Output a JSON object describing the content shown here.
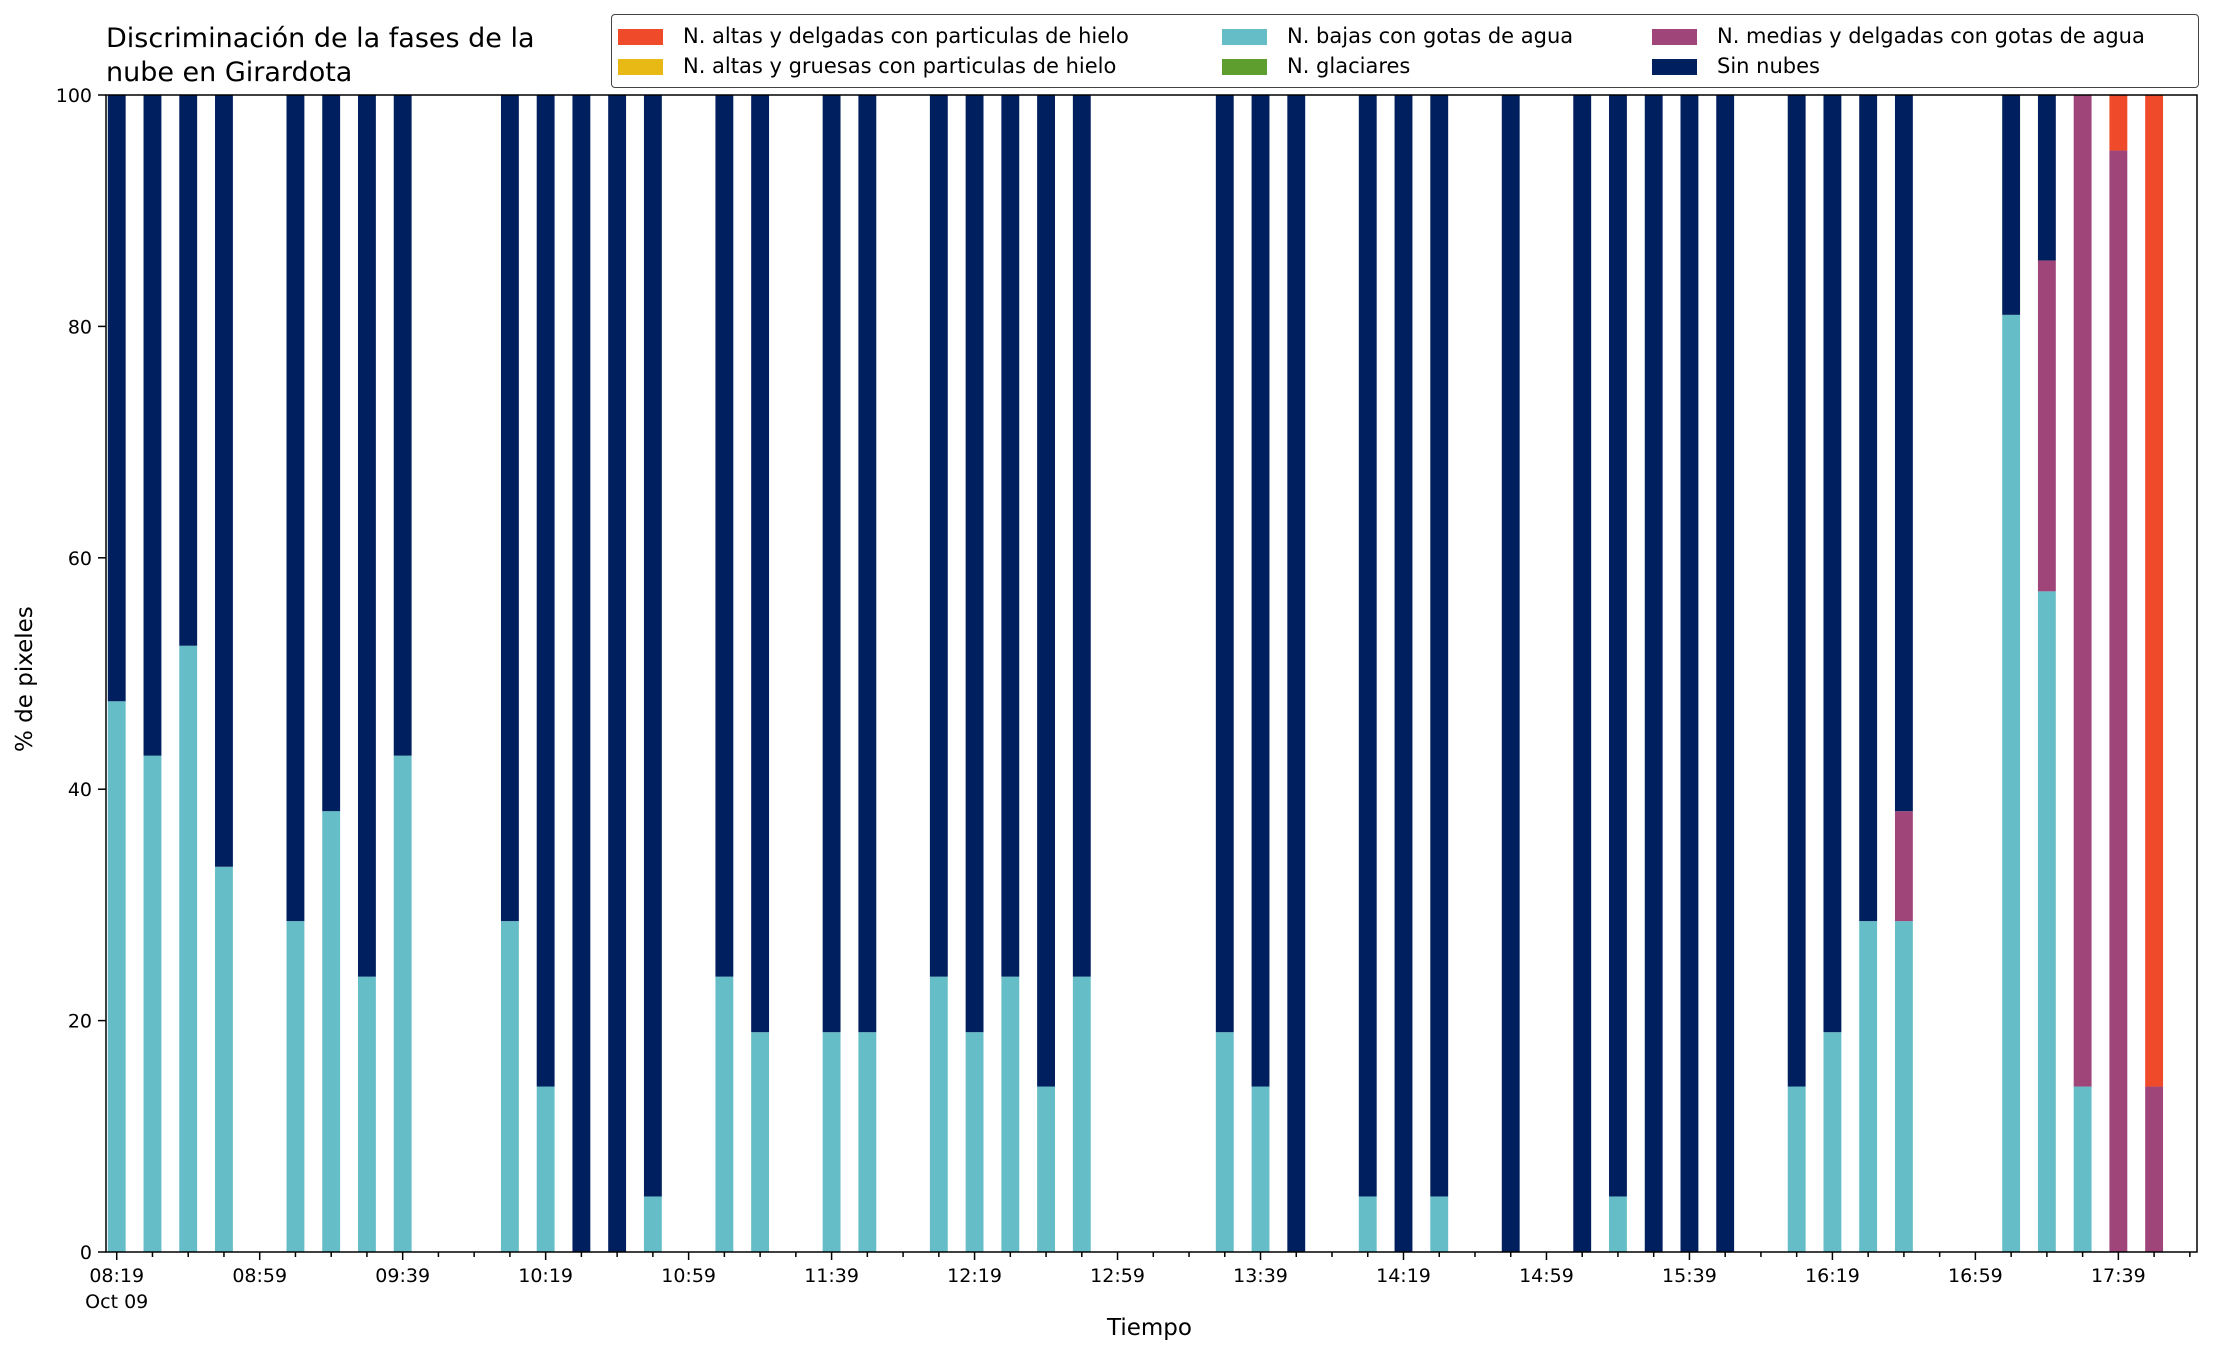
{
  "chart_data": {
    "type": "bar",
    "stacked": true,
    "title_lines": [
      "Discriminación de la fases de la",
      "nube en Girardota"
    ],
    "xlabel": "Tiempo",
    "ylabel": "% de pixeles",
    "ylim": [
      0,
      100
    ],
    "yticks": [
      0,
      20,
      40,
      60,
      80,
      100
    ],
    "xticks": [
      {
        "pos": 0,
        "label": "08:19",
        "sublabel": "Oct 09"
      },
      {
        "pos": 4,
        "label": "08:59"
      },
      {
        "pos": 8,
        "label": "09:39"
      },
      {
        "pos": 12,
        "label": "10:19"
      },
      {
        "pos": 16,
        "label": "10:59"
      },
      {
        "pos": 20,
        "label": "11:39"
      },
      {
        "pos": 24,
        "label": "12:19"
      },
      {
        "pos": 28,
        "label": "12:59"
      },
      {
        "pos": 32,
        "label": "13:39"
      },
      {
        "pos": 36,
        "label": "14:19"
      },
      {
        "pos": 40,
        "label": "14:59"
      },
      {
        "pos": 44,
        "label": "15:39"
      },
      {
        "pos": 48,
        "label": "16:19"
      },
      {
        "pos": 52,
        "label": "16:59"
      },
      {
        "pos": 56,
        "label": "17:39"
      }
    ],
    "xrange": [
      -0.3,
      58.2
    ],
    "legend_location": "top-right",
    "series": [
      {
        "key": "bajas",
        "name": "N. bajas con gotas de agua",
        "color": "#65bdc8"
      },
      {
        "key": "medias",
        "name": "N. medias y delgadas con gotas de agua",
        "color": "#a0457a"
      },
      {
        "key": "altasd",
        "name": "N. altas y delgadas con particulas de hielo",
        "color": "#ef4b2b"
      },
      {
        "key": "altasg",
        "name": "N. altas y gruesas con particulas de hielo",
        "color": "#e8b914"
      },
      {
        "key": "glac",
        "name": "N. glaciares",
        "color": "#5e9e2e"
      },
      {
        "key": "sin",
        "name": "Sin nubes",
        "color": "#001f5e"
      }
    ],
    "legend_order": [
      "altasd",
      "altasg",
      "bajas",
      "glac",
      "medias",
      "sin"
    ],
    "bars": [
      {
        "x": 0,
        "bajas": 47.6,
        "sin": 52.4
      },
      {
        "x": 1,
        "bajas": 42.9,
        "sin": 57.1
      },
      {
        "x": 2,
        "bajas": 52.4,
        "sin": 47.6
      },
      {
        "x": 3,
        "bajas": 33.3,
        "sin": 66.7
      },
      {
        "x": 5,
        "bajas": 28.6,
        "sin": 71.4
      },
      {
        "x": 6,
        "bajas": 38.1,
        "sin": 61.9
      },
      {
        "x": 7,
        "bajas": 23.8,
        "sin": 76.2
      },
      {
        "x": 8,
        "bajas": 42.9,
        "sin": 57.1
      },
      {
        "x": 11,
        "bajas": 28.6,
        "sin": 71.4
      },
      {
        "x": 12,
        "bajas": 14.3,
        "sin": 85.7
      },
      {
        "x": 13,
        "sin": 100
      },
      {
        "x": 14,
        "sin": 100
      },
      {
        "x": 15,
        "bajas": 4.8,
        "sin": 95.2
      },
      {
        "x": 17,
        "bajas": 23.8,
        "sin": 76.2
      },
      {
        "x": 18,
        "bajas": 19.0,
        "sin": 81.0
      },
      {
        "x": 20,
        "bajas": 19.0,
        "sin": 81.0
      },
      {
        "x": 21,
        "bajas": 19.0,
        "sin": 81.0
      },
      {
        "x": 23,
        "bajas": 23.8,
        "sin": 76.2
      },
      {
        "x": 24,
        "bajas": 19.0,
        "sin": 81.0
      },
      {
        "x": 25,
        "bajas": 23.8,
        "sin": 76.2
      },
      {
        "x": 26,
        "bajas": 14.3,
        "sin": 85.7
      },
      {
        "x": 27,
        "bajas": 23.8,
        "sin": 76.2
      },
      {
        "x": 31,
        "bajas": 19.0,
        "sin": 81.0
      },
      {
        "x": 32,
        "bajas": 14.3,
        "sin": 85.7
      },
      {
        "x": 33,
        "sin": 100
      },
      {
        "x": 35,
        "bajas": 4.8,
        "sin": 95.2
      },
      {
        "x": 36,
        "sin": 100
      },
      {
        "x": 37,
        "bajas": 4.8,
        "sin": 95.2
      },
      {
        "x": 39,
        "sin": 100
      },
      {
        "x": 41,
        "sin": 100
      },
      {
        "x": 42,
        "bajas": 4.8,
        "sin": 95.2
      },
      {
        "x": 43,
        "sin": 100
      },
      {
        "x": 44,
        "sin": 100
      },
      {
        "x": 45,
        "sin": 100
      },
      {
        "x": 47,
        "bajas": 14.3,
        "sin": 85.7
      },
      {
        "x": 48,
        "bajas": 19.0,
        "sin": 81.0
      },
      {
        "x": 49,
        "bajas": 28.6,
        "sin": 71.4
      },
      {
        "x": 50,
        "bajas": 28.6,
        "medias": 9.5,
        "sin": 61.9
      },
      {
        "x": 53,
        "bajas": 81.0,
        "sin": 19.0
      },
      {
        "x": 54,
        "bajas": 57.1,
        "medias": 28.6,
        "sin": 14.3
      },
      {
        "x": 55,
        "bajas": 14.3,
        "medias": 85.7
      },
      {
        "x": 56,
        "altasd": 4.8,
        "medias": 95.2
      },
      {
        "x": 57,
        "altasd": 85.7,
        "medias": 14.3
      }
    ]
  }
}
